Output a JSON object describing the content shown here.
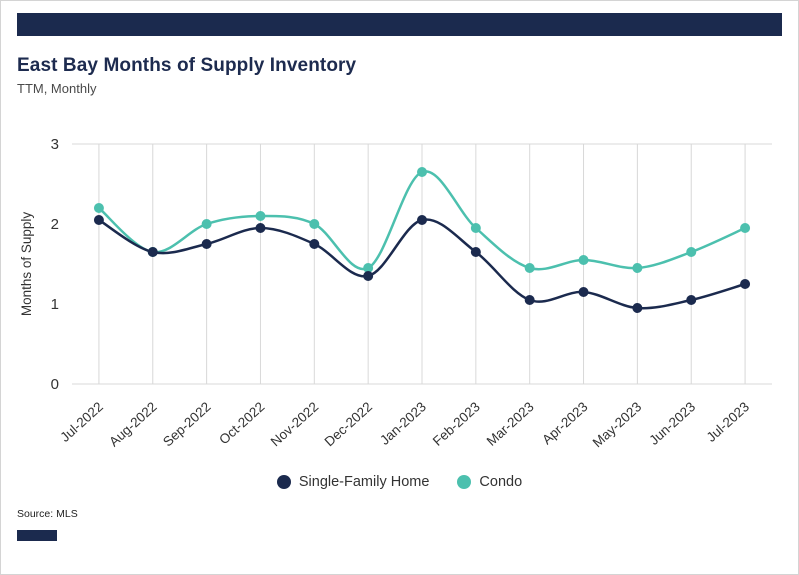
{
  "header": {
    "title": "East Bay Months of Supply Inventory",
    "subtitle": "TTM, Monthly"
  },
  "footer": {
    "source_label": "Source:  MLS"
  },
  "colors": {
    "navy": "#1b2a4e",
    "teal": "#4cc0ae",
    "grid": "#d8d8d8",
    "axis_text": "#333333"
  },
  "chart_data": {
    "type": "line",
    "title": "East Bay Months of Supply Inventory",
    "subtitle": "TTM, Monthly",
    "xlabel": "",
    "ylabel": "Months of Supply",
    "ylim": [
      0,
      3
    ],
    "yticks": [
      0,
      1,
      2,
      3
    ],
    "grid": "vertical",
    "legend_position": "bottom",
    "categories": [
      "Jul-2022",
      "Aug-2022",
      "Sep-2022",
      "Oct-2022",
      "Nov-2022",
      "Dec-2022",
      "Jan-2023",
      "Feb-2023",
      "Mar-2023",
      "Apr-2023",
      "May-2023",
      "Jun-2023",
      "Jul-2023"
    ],
    "series": [
      {
        "name": "Single-Family Home",
        "color": "#1b2a4e",
        "values": [
          2.05,
          1.65,
          1.75,
          1.95,
          1.75,
          1.35,
          2.05,
          1.65,
          1.05,
          1.15,
          0.95,
          1.05,
          1.25
        ]
      },
      {
        "name": "Condo",
        "color": "#4cc0ae",
        "values": [
          2.2,
          1.65,
          2.0,
          2.1,
          2.0,
          1.45,
          2.65,
          1.95,
          1.45,
          1.55,
          1.45,
          1.65,
          1.95
        ]
      }
    ]
  }
}
